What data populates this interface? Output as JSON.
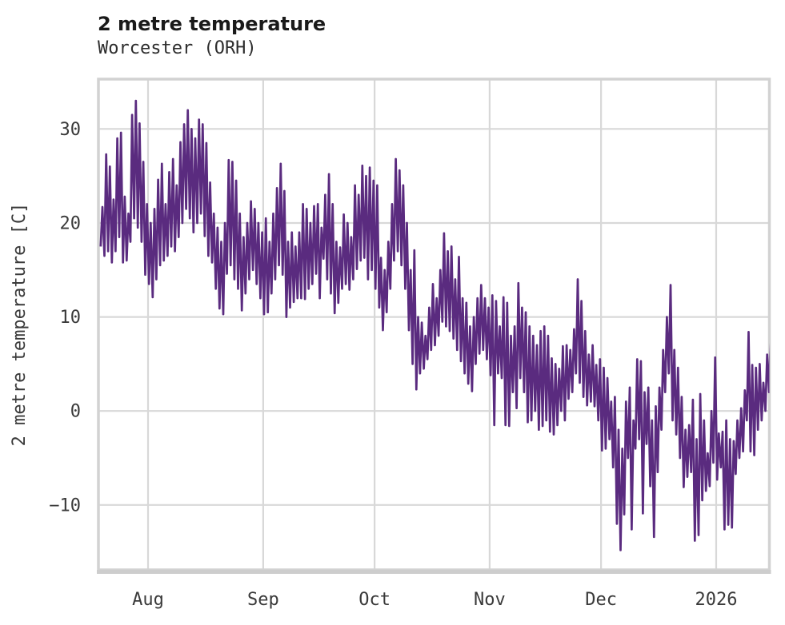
{
  "header": {
    "title": "2 metre temperature",
    "subtitle": "Worcester (ORH)"
  },
  "chart_data": {
    "type": "line",
    "title": "2 metre temperature",
    "subtitle": "Worcester (ORH)",
    "ylabel": "2 metre temperature [C]",
    "xlabel": "",
    "legend": null,
    "grid": true,
    "line_color": "#5A2B7F",
    "grid_color": "#D8D8D8",
    "border_color": "#D2D2D2",
    "axis_line_color": "#CDCDCD",
    "tick_color": "#3a3a3a",
    "ylim": [
      -16.9,
      35.3
    ],
    "x_day_domain": [
      -0.36,
      180.33
    ],
    "x_unit": "days since series start (mid-July)",
    "yticks": [
      30,
      20,
      10,
      0,
      -10
    ],
    "ytick_labels": [
      "30",
      "20",
      "10",
      "0",
      "−10"
    ],
    "xticks": [
      {
        "label": "Aug",
        "day": 13
      },
      {
        "label": "Sep",
        "day": 44
      },
      {
        "label": "Oct",
        "day": 74
      },
      {
        "label": "Nov",
        "day": 105
      },
      {
        "label": "Dec",
        "day": 135
      },
      {
        "label": "2026",
        "day": 166
      }
    ],
    "series_description": "2 m temperature, diurnal cycle shown as daily min/max envelope, degrees C, one value pair per day from mid-July to mid-January 2026",
    "daily": {
      "min": [
        17.5,
        16.5,
        17.0,
        15.8,
        17.0,
        18.5,
        15.8,
        16.0,
        18.0,
        20.5,
        19.5,
        18.0,
        14.5,
        13.5,
        12.1,
        14.0,
        15.5,
        16.0,
        16.5,
        17.5,
        17.0,
        18.5,
        20.0,
        21.5,
        20.5,
        19.0,
        20.0,
        21.0,
        18.6,
        16.5,
        15.8,
        13.0,
        10.9,
        10.3,
        14.6,
        15.5,
        14.0,
        13.0,
        10.7,
        12.5,
        14.0,
        15.0,
        13.5,
        12.0,
        10.3,
        10.5,
        12.5,
        14.0,
        15.5,
        14.5,
        10.0,
        11.0,
        11.6,
        12.0,
        12.0,
        11.9,
        13.0,
        13.5,
        14.6,
        12.0,
        16.2,
        14.0,
        12.5,
        10.4,
        11.5,
        13.0,
        13.5,
        12.9,
        14.0,
        15.1,
        16.0,
        16.3,
        14.0,
        15.0,
        13.0,
        11.0,
        8.6,
        10.5,
        13.0,
        16.0,
        17.0,
        15.5,
        13.0,
        8.6,
        5.0,
        2.3,
        4.0,
        4.5,
        5.5,
        6.5,
        7.0,
        8.0,
        9.5,
        9.0,
        8.5,
        7.7,
        6.5,
        5.3,
        4.0,
        2.9,
        2.1,
        5.0,
        6.1,
        6.5,
        5.5,
        3.8,
        -1.5,
        4.0,
        3.5,
        -1.5,
        -1.6,
        2.0,
        0.3,
        3.5,
        2.0,
        -1.2,
        -1.0,
        0.0,
        -2.0,
        -1.6,
        -1.0,
        -2.2,
        -2.5,
        -1.5,
        0.0,
        -1.0,
        1.3,
        2.0,
        4.0,
        3.0,
        1.5,
        0.6,
        1.0,
        0.5,
        -1.0,
        -4.2,
        -4.0,
        -3.0,
        -6.0,
        -12.0,
        -14.8,
        -11.0,
        -5.0,
        -12.6,
        -4.0,
        -3.0,
        -10.9,
        -3.5,
        -8.0,
        -13.4,
        -6.5,
        -2.0,
        2.0,
        4.0,
        -1.0,
        -2.5,
        -5.0,
        -8.1,
        -7.0,
        -6.5,
        -13.8,
        -13.2,
        -9.5,
        -8.5,
        -8.0,
        -5.5,
        -7.3,
        -6.0,
        -12.6,
        -12.1,
        -12.4,
        -6.7,
        -5.0,
        -4.3,
        -1.0,
        -4.3,
        -4.7,
        -2.0,
        -1.0,
        0.0,
        2.0
      ],
      "max": [
        21.7,
        27.3,
        26.0,
        22.5,
        29.0,
        29.6,
        22.8,
        21.0,
        31.5,
        33.0,
        30.6,
        26.5,
        22.0,
        20.0,
        21.5,
        24.6,
        26.3,
        22.0,
        25.4,
        26.8,
        24.0,
        28.6,
        30.5,
        32.0,
        30.0,
        29.0,
        31.0,
        30.5,
        28.5,
        24.3,
        21.0,
        19.5,
        18.0,
        20.0,
        26.7,
        26.5,
        24.5,
        21.0,
        18.5,
        20.0,
        22.3,
        21.5,
        20.0,
        19.0,
        20.5,
        18.0,
        21.0,
        23.7,
        26.3,
        23.4,
        18.0,
        19.0,
        17.5,
        19.0,
        22.0,
        21.5,
        20.0,
        21.8,
        22.0,
        19.5,
        23.0,
        25.2,
        22.0,
        18.0,
        17.4,
        20.9,
        20.0,
        18.5,
        24.0,
        23.0,
        26.1,
        25.0,
        25.9,
        24.5,
        24.0,
        16.3,
        15.0,
        18.0,
        22.0,
        26.8,
        25.6,
        24.0,
        20.0,
        15.0,
        17.1,
        10.0,
        9.4,
        8.0,
        11.0,
        13.5,
        12.0,
        15.0,
        18.9,
        17.0,
        17.5,
        14.0,
        16.4,
        12.0,
        11.5,
        9.0,
        10.0,
        12.0,
        13.4,
        12.0,
        11.0,
        12.3,
        11.7,
        9.0,
        12.1,
        11.5,
        8.0,
        9.0,
        13.6,
        11.0,
        10.5,
        9.0,
        8.0,
        7.0,
        8.5,
        9.0,
        8.0,
        5.6,
        5.0,
        4.5,
        6.9,
        7.0,
        6.5,
        8.7,
        14.0,
        11.7,
        8.5,
        6.0,
        7.0,
        4.9,
        5.5,
        4.6,
        3.5,
        1.0,
        1.5,
        -2.0,
        -4.0,
        1.0,
        2.5,
        -1.0,
        5.5,
        5.3,
        2.0,
        2.5,
        -1.0,
        0.5,
        2.5,
        6.5,
        10.0,
        13.4,
        6.5,
        4.6,
        1.5,
        -2.0,
        -1.5,
        1.2,
        -3.0,
        1.8,
        -1.0,
        -4.5,
        0.0,
        5.7,
        -2.4,
        -2.2,
        -1.0,
        -3.0,
        -3.2,
        -1.0,
        0.3,
        2.2,
        8.4,
        4.9,
        4.6,
        5.0,
        3.0,
        6.0,
        8.6
      ]
    }
  }
}
